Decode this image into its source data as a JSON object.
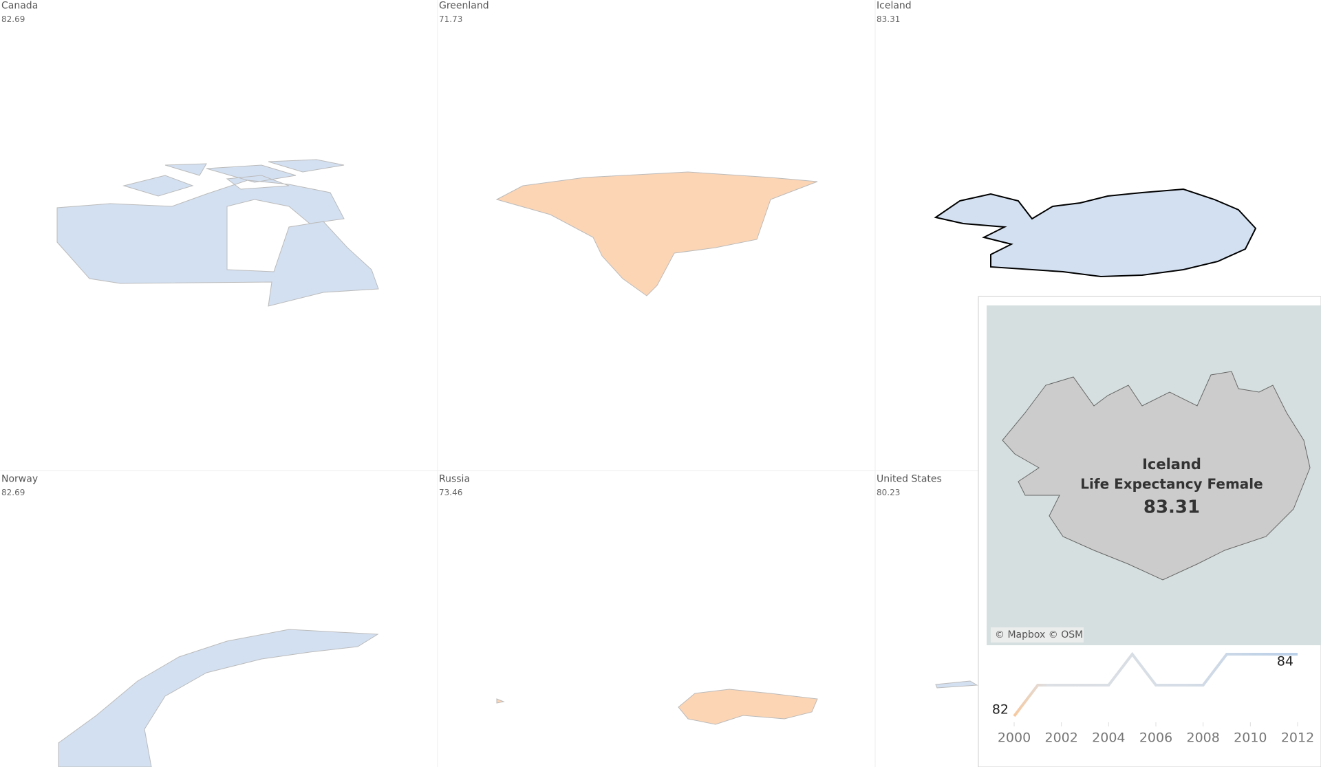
{
  "panels": [
    {
      "name": "Canada",
      "value": 82.69,
      "color": "#d3e0f1"
    },
    {
      "name": "Greenland",
      "value": 71.73,
      "color": "#fcd5b5"
    },
    {
      "name": "Iceland",
      "value": 83.31,
      "color": "#d3e0f1"
    },
    {
      "name": "Norway",
      "value": 82.69,
      "color": "#d3e0f1"
    },
    {
      "name": "Russia",
      "value": 73.46,
      "color": "#fcd5b5"
    },
    {
      "name": "United States",
      "value": 80.23,
      "color": "#d3e0f1"
    }
  ],
  "tooltip": {
    "title": "Iceland",
    "measure": "Life Expectancy Female",
    "value": 83.31,
    "attribution": "© Mapbox © OSM",
    "chart": {
      "type": "line",
      "x": [
        2000,
        2001,
        2002,
        2003,
        2004,
        2005,
        2006,
        2007,
        2008,
        2009,
        2010,
        2011,
        2012
      ],
      "values": [
        82,
        83,
        83,
        83,
        83,
        84,
        83,
        83,
        83,
        84,
        84,
        84,
        84
      ],
      "xlim": [
        2000,
        2012
      ],
      "ylim": [
        82,
        84
      ],
      "xticks": [
        2000,
        2002,
        2004,
        2006,
        2008,
        2010,
        2012
      ]
    }
  }
}
